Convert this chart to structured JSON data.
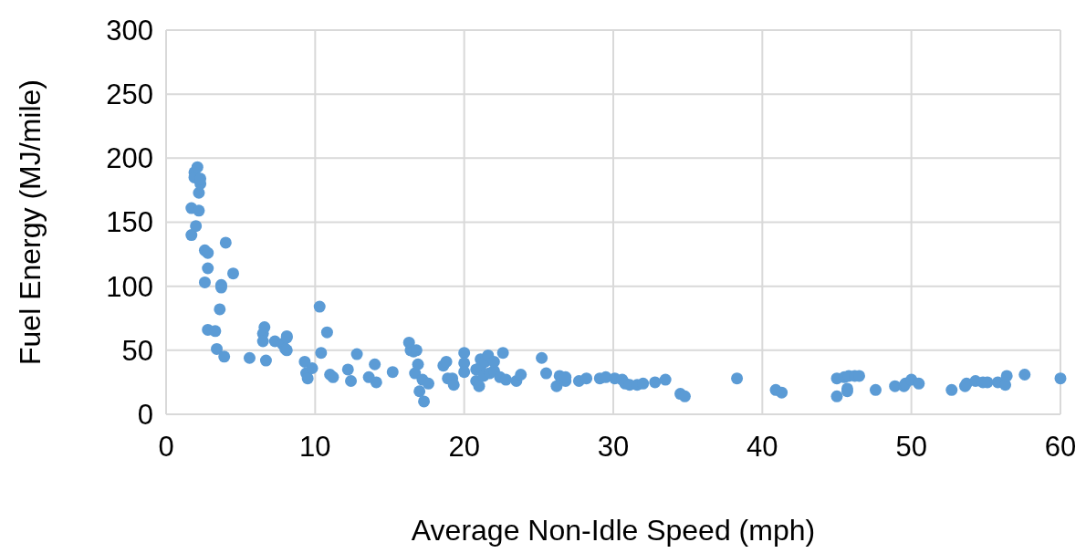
{
  "chart_data": {
    "type": "scatter",
    "xlabel": "Average Non-Idle Speed (mph)",
    "ylabel": "Fuel Energy (MJ/mile)",
    "xlim": [
      0,
      60
    ],
    "xticks": [
      0,
      10,
      20,
      30,
      40,
      50,
      60
    ],
    "ylim": [
      0,
      300
    ],
    "yticks": [
      0,
      50,
      100,
      150,
      200,
      250,
      300
    ],
    "grid": true,
    "marker": "circle",
    "series": [
      {
        "color": "#5b9bd5",
        "x": [
          1.7,
          1.7,
          1.9,
          1.9,
          2.1,
          2.0,
          2.2,
          2.2,
          2.3,
          2.3,
          2.6,
          2.6,
          2.8,
          2.8,
          2.8,
          3.3,
          3.4,
          3.6,
          3.7,
          3.7,
          3.9,
          4.0,
          4.5,
          5.6,
          6.5,
          6.6,
          6.5,
          6.7,
          7.3,
          7.8,
          8.0,
          8.1,
          8.1,
          8.1,
          9.3,
          9.4,
          9.5,
          9.8,
          10.3,
          10.4,
          10.8,
          11.0,
          11.2,
          12.2,
          12.4,
          12.8,
          13.6,
          14.0,
          14.1,
          15.2,
          16.3,
          16.4,
          16.6,
          16.8,
          16.7,
          16.9,
          17.0,
          17.2,
          17.3,
          17.6,
          18.6,
          18.8,
          18.9,
          19.2,
          19.3,
          20.0,
          20.0,
          20.0,
          20.8,
          20.8,
          21.0,
          21.1,
          21.1,
          21.3,
          21.4,
          21.6,
          21.7,
          22.0,
          22.0,
          22.4,
          22.6,
          22.8,
          23.5,
          23.8,
          25.2,
          25.5,
          26.2,
          26.4,
          26.8,
          26.8,
          27.7,
          28.2,
          29.1,
          29.5,
          30.1,
          30.6,
          30.8,
          31.1,
          31.6,
          32.0,
          32.8,
          33.5,
          34.5,
          34.8,
          38.3,
          40.9,
          41.3,
          45.0,
          45.0,
          45.5,
          45.8,
          45.7,
          45.7,
          46.2,
          46.5,
          47.6,
          48.9,
          49.5,
          49.6,
          50.0,
          50.5,
          52.7,
          53.6,
          53.7,
          54.3,
          54.8,
          55.1,
          55.8,
          56.3,
          56.4,
          57.6,
          60.0
        ],
        "values": [
          161,
          140,
          189,
          185,
          193,
          147,
          159,
          173,
          180,
          184,
          103,
          128,
          126,
          114,
          66,
          65,
          51,
          82,
          101,
          99,
          45,
          134,
          110,
          44,
          63,
          68,
          57,
          42,
          57,
          55,
          51,
          61,
          60,
          50,
          41,
          32,
          28,
          36,
          84,
          48,
          64,
          31,
          29,
          35,
          26,
          47,
          29,
          39,
          25,
          33,
          56,
          50,
          49,
          50,
          32,
          39,
          18,
          27,
          10,
          24,
          38,
          41,
          28,
          28,
          23,
          48,
          40,
          33,
          35,
          26,
          22,
          37,
          43,
          30,
          41,
          46,
          32,
          34,
          41,
          29,
          48,
          27,
          26,
          31,
          44,
          32,
          22,
          30,
          26,
          29,
          26,
          28,
          28,
          29,
          28,
          27,
          24,
          23,
          23,
          24,
          25,
          27,
          16,
          14,
          28,
          19,
          17,
          28,
          14,
          29,
          30,
          20,
          18,
          30,
          30,
          19,
          22,
          22,
          24,
          27,
          24,
          19,
          22,
          24,
          26,
          25,
          25,
          25,
          23,
          30,
          31,
          28
        ]
      }
    ]
  }
}
